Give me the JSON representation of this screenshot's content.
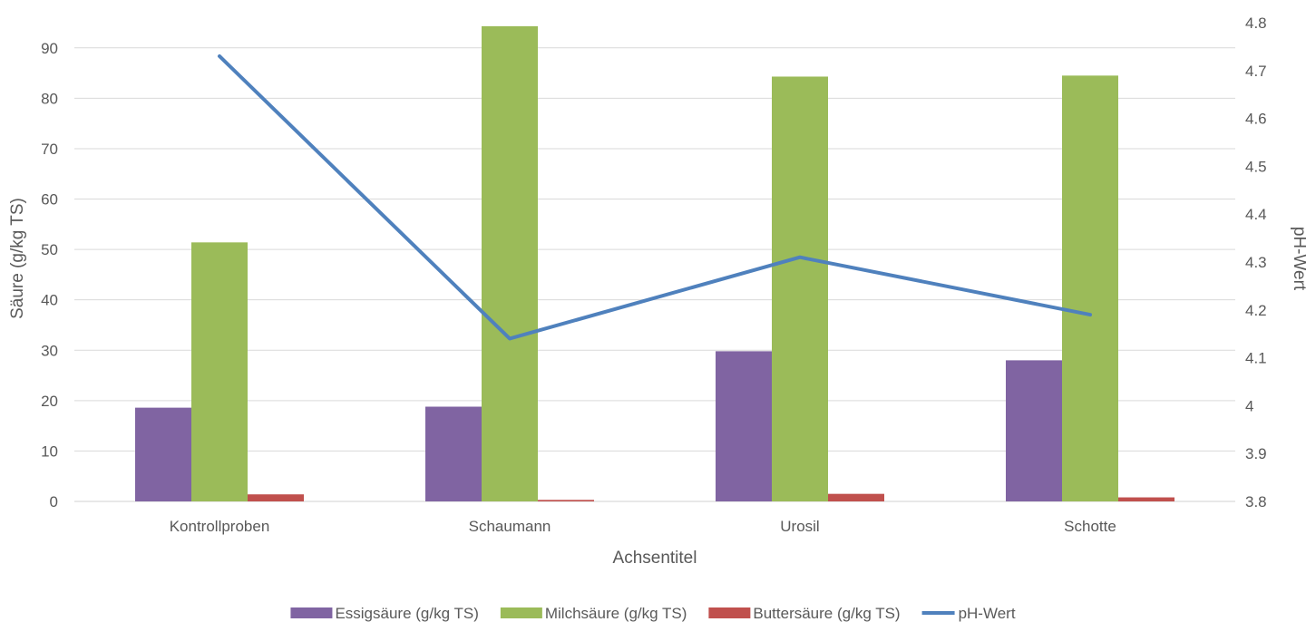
{
  "chart_data": {
    "type": "bar",
    "categories": [
      "Kontrollproben",
      "Schaumann",
      "Urosil",
      "Schotte"
    ],
    "xlabel": "Achsentitel",
    "ylabel": "Säure (g/kg TS)",
    "y2label": "pH-Wert",
    "ylim": [
      0,
      95
    ],
    "yticks": [
      0,
      10,
      20,
      30,
      40,
      50,
      60,
      70,
      80,
      90
    ],
    "y2lim": [
      3.8,
      4.8
    ],
    "y2ticks": [
      "3.8",
      "3.9",
      "4",
      "4.1",
      "4.2",
      "4.3",
      "4.4",
      "4.5",
      "4.6",
      "4.7",
      "4.8"
    ],
    "grid": true,
    "legend_position": "bottom",
    "series": [
      {
        "name": "Essigsäure (g/kg TS)",
        "type": "bar",
        "axis": "left",
        "color": "#8064A2",
        "values": [
          18.6,
          18.8,
          29.8,
          28.0
        ]
      },
      {
        "name": "Milchsäure (g/kg TS)",
        "type": "bar",
        "axis": "left",
        "color": "#9BBB59",
        "values": [
          51.4,
          94.3,
          84.3,
          84.5
        ]
      },
      {
        "name": "Buttersäure (g/kg TS)",
        "type": "bar",
        "axis": "left",
        "color": "#C0504D",
        "values": [
          1.4,
          0.3,
          1.5,
          0.8
        ]
      },
      {
        "name": "pH-Wert",
        "type": "line",
        "axis": "right",
        "color": "#4F81BD",
        "values": [
          4.73,
          4.14,
          4.31,
          4.19
        ]
      }
    ]
  }
}
